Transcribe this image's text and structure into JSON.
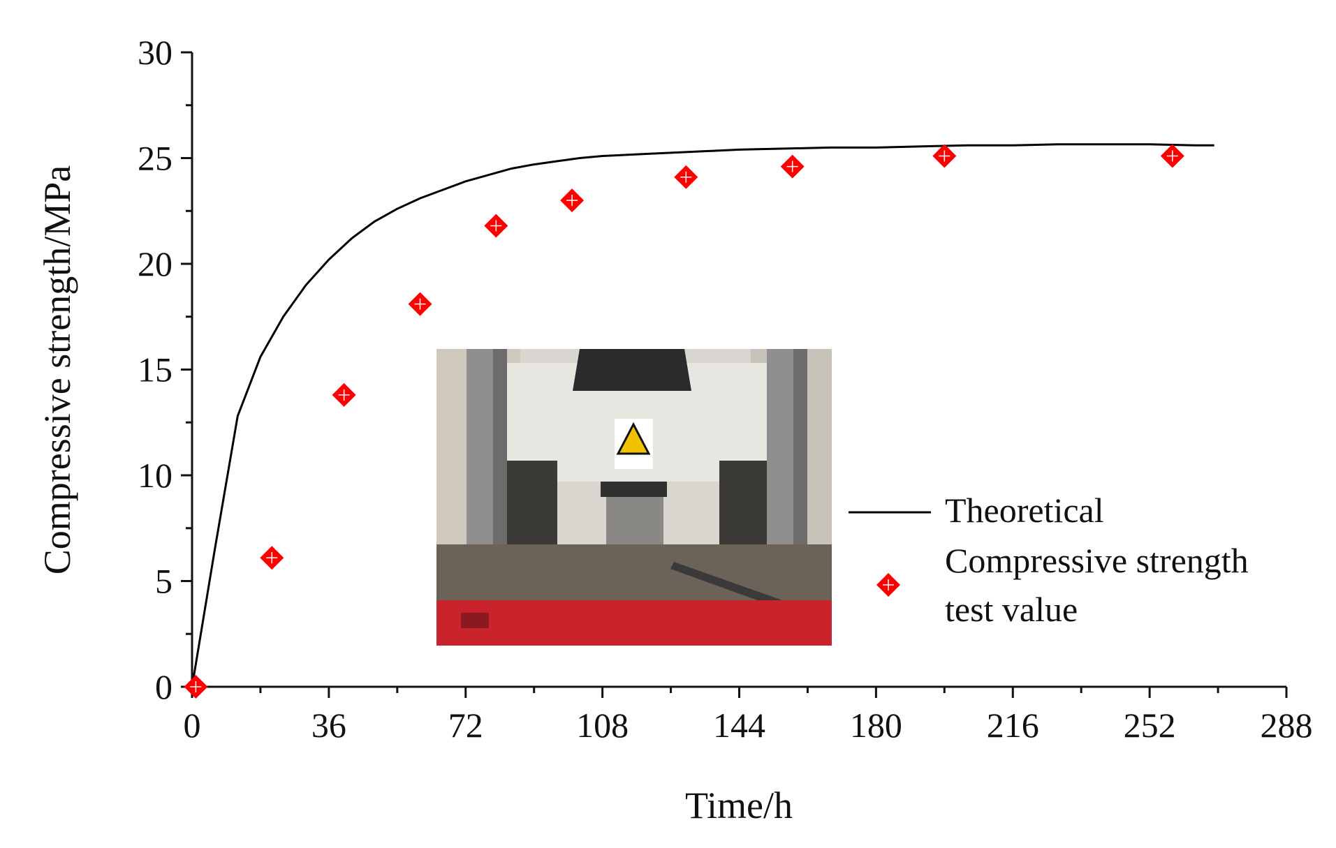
{
  "chart_data": {
    "type": "line",
    "title": "",
    "xlabel": "Time/h",
    "ylabel": "Compressive strength/MPa",
    "xlim": [
      0,
      288
    ],
    "ylim": [
      0,
      30
    ],
    "x_ticks": [
      "0",
      "36",
      "72",
      "108",
      "144",
      "180",
      "216",
      "252",
      "288"
    ],
    "y_ticks": [
      "0",
      "5",
      "10",
      "15",
      "20",
      "25",
      "30"
    ],
    "x_minor_step": 18,
    "y_minor_step": 2.5,
    "grid": false,
    "legend_position": "right",
    "series": [
      {
        "name": "Theoretical",
        "kind": "line",
        "color": "#000000",
        "x": [
          0,
          6,
          12,
          18,
          24,
          30,
          36,
          42,
          48,
          54,
          60,
          66,
          72,
          78,
          84,
          90,
          96,
          102,
          108,
          120,
          132,
          144,
          156,
          168,
          180,
          192,
          204,
          216,
          228,
          240,
          252,
          264,
          269
        ],
        "y": [
          0,
          6.5,
          12.8,
          15.6,
          17.5,
          19.0,
          20.2,
          21.2,
          22.0,
          22.6,
          23.1,
          23.5,
          23.9,
          24.2,
          24.5,
          24.7,
          24.85,
          25.0,
          25.1,
          25.2,
          25.3,
          25.4,
          25.45,
          25.5,
          25.5,
          25.55,
          25.6,
          25.6,
          25.65,
          25.65,
          25.65,
          25.6,
          25.6
        ]
      },
      {
        "name": "Compressive strength test value",
        "kind": "scatter",
        "marker": "diamond",
        "color": "#ff0000",
        "x": [
          1,
          21,
          40,
          60,
          80,
          100,
          130,
          158,
          198,
          258
        ],
        "y": [
          0,
          6.1,
          13.8,
          18.1,
          21.8,
          23.0,
          24.1,
          24.6,
          25.1,
          25.1
        ]
      }
    ],
    "legend": {
      "line_label": "Theoretical",
      "marker_label_line1": "Compressive strength",
      "marker_label_line2": "test value"
    }
  }
}
